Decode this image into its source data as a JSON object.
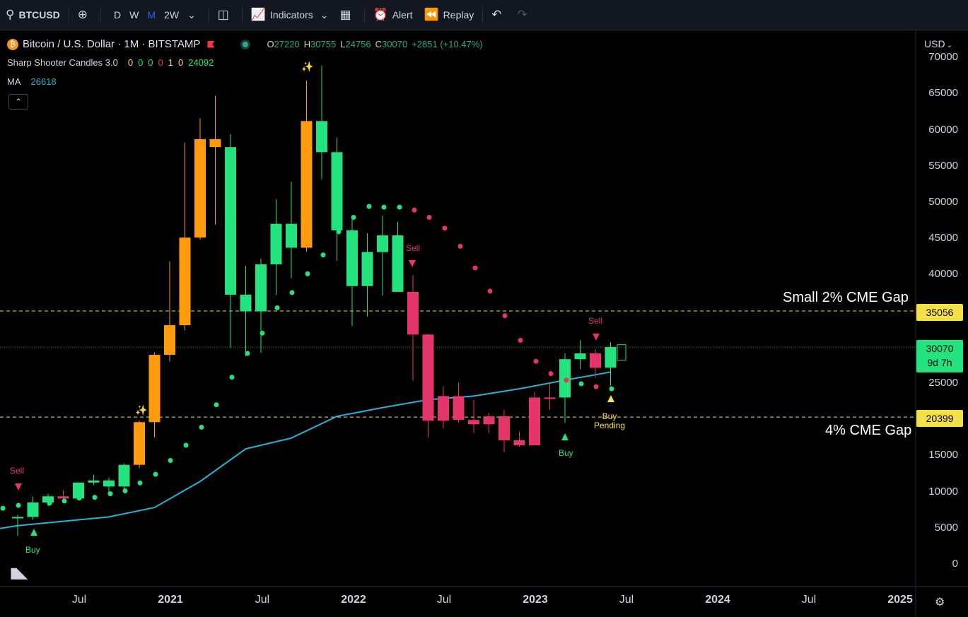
{
  "toolbar": {
    "symbol": "BTCUSD",
    "intervals": [
      "D",
      "W",
      "M",
      "2W"
    ],
    "active_interval": "M",
    "indicators_label": "Indicators",
    "alert_label": "Alert",
    "replay_label": "Replay"
  },
  "legend": {
    "title": "Bitcoin / U.S. Dollar · 1M · BITSTAMP",
    "o_label": "O",
    "o_value": "27220",
    "h_label": "H",
    "h_value": "30755",
    "l_label": "L",
    "l_value": "24756",
    "c_label": "C",
    "c_value": "30070",
    "change": "+2851 (+10.47%)",
    "indicator1_name": "Sharp Shooter Candles 3.0",
    "indicator1_values": [
      "0",
      "0",
      "0",
      "0",
      "1",
      "0",
      "24092"
    ],
    "indicator2_name": "MA",
    "indicator2_value": "26618"
  },
  "price_axis": {
    "currency": "USD",
    "ticks": [
      "70000",
      "65000",
      "60000",
      "55000",
      "50000",
      "45000",
      "40000",
      "35000",
      "30000",
      "25000",
      "20000",
      "15000",
      "10000",
      "5000",
      "0"
    ]
  },
  "time_axis": {
    "ticks": [
      "Jul",
      "2021",
      "Jul",
      "2022",
      "Jul",
      "2023",
      "Jul",
      "2024",
      "Jul",
      "2025"
    ]
  },
  "price_tags": {
    "gap_small": "35056",
    "current": "30070",
    "countdown": "9d 7h",
    "gap_large": "20399"
  },
  "annotations": {
    "small_gap": "Small 2% CME Gap",
    "large_gap": "4% CME Gap"
  },
  "signals": {
    "sell": "Sell",
    "buy": "Buy",
    "buy_pending": "Buy Pending"
  },
  "colors": {
    "bull": "#22e37d",
    "bear": "#e6356a",
    "orange": "#ff9b0f",
    "ma": "#1fb4d8",
    "gap_line": "#f5e04a",
    "price_tag": "#f5e04a",
    "current_tag": "#22e37d"
  },
  "chart_data": {
    "type": "candlestick",
    "ylim": [
      0,
      72000
    ],
    "candles": [
      {
        "date": "2020-03",
        "o": 6400,
        "h": 6900,
        "l": 4000,
        "c": 6600,
        "color": "green"
      },
      {
        "date": "2020-04",
        "o": 6600,
        "h": 9400,
        "l": 6200,
        "c": 8600,
        "color": "green"
      },
      {
        "date": "2020-05",
        "o": 8600,
        "h": 9800,
        "l": 8100,
        "c": 9450,
        "color": "green"
      },
      {
        "date": "2020-06",
        "o": 9450,
        "h": 10300,
        "l": 8900,
        "c": 9150,
        "color": "red"
      },
      {
        "date": "2020-07",
        "o": 9150,
        "h": 11400,
        "l": 8950,
        "c": 11350,
        "color": "green"
      },
      {
        "date": "2020-08",
        "o": 11350,
        "h": 12450,
        "l": 11000,
        "c": 11650,
        "color": "green"
      },
      {
        "date": "2020-09",
        "o": 11650,
        "h": 12050,
        "l": 9900,
        "c": 10800,
        "color": "green"
      },
      {
        "date": "2020-10",
        "o": 10800,
        "h": 14000,
        "l": 10400,
        "c": 13800,
        "color": "green"
      },
      {
        "date": "2020-11",
        "o": 13800,
        "h": 19900,
        "l": 13300,
        "c": 19700,
        "color": "orange"
      },
      {
        "date": "2020-12",
        "o": 19700,
        "h": 29300,
        "l": 17600,
        "c": 29000,
        "color": "orange"
      },
      {
        "date": "2021-01",
        "o": 29000,
        "h": 41900,
        "l": 28100,
        "c": 33100,
        "color": "orange"
      },
      {
        "date": "2021-02",
        "o": 33100,
        "h": 58300,
        "l": 32400,
        "c": 45200,
        "color": "orange"
      },
      {
        "date": "2021-03",
        "o": 45200,
        "h": 61700,
        "l": 44900,
        "c": 58800,
        "color": "orange"
      },
      {
        "date": "2021-04",
        "o": 58800,
        "h": 64800,
        "l": 47000,
        "c": 57700,
        "color": "orange"
      },
      {
        "date": "2021-05",
        "o": 57700,
        "h": 59500,
        "l": 30000,
        "c": 37300,
        "color": "green"
      },
      {
        "date": "2021-06",
        "o": 37300,
        "h": 41300,
        "l": 28800,
        "c": 35000,
        "color": "green"
      },
      {
        "date": "2021-07",
        "o": 35000,
        "h": 42300,
        "l": 29300,
        "c": 41500,
        "color": "green"
      },
      {
        "date": "2021-08",
        "o": 41500,
        "h": 50500,
        "l": 37300,
        "c": 47100,
        "color": "green"
      },
      {
        "date": "2021-09",
        "o": 47100,
        "h": 52900,
        "l": 39600,
        "c": 43800,
        "color": "green"
      },
      {
        "date": "2021-10",
        "o": 43800,
        "h": 66900,
        "l": 43300,
        "c": 61300,
        "color": "orange"
      },
      {
        "date": "2021-11",
        "o": 61300,
        "h": 69000,
        "l": 53300,
        "c": 57000,
        "color": "green"
      },
      {
        "date": "2021-12",
        "o": 57000,
        "h": 59000,
        "l": 42000,
        "c": 46200,
        "color": "green"
      },
      {
        "date": "2022-01",
        "o": 46200,
        "h": 47900,
        "l": 33000,
        "c": 38500,
        "color": "green"
      },
      {
        "date": "2022-02",
        "o": 38500,
        "h": 45800,
        "l": 34300,
        "c": 43200,
        "color": "green"
      },
      {
        "date": "2022-03",
        "o": 43200,
        "h": 48200,
        "l": 37200,
        "c": 45500,
        "color": "green"
      },
      {
        "date": "2022-04",
        "o": 45500,
        "h": 47400,
        "l": 37700,
        "c": 37700,
        "color": "green"
      },
      {
        "date": "2022-05",
        "o": 37700,
        "h": 40000,
        "l": 25400,
        "c": 31800,
        "color": "red"
      },
      {
        "date": "2022-06",
        "o": 31800,
        "h": 31900,
        "l": 17600,
        "c": 19900,
        "color": "red"
      },
      {
        "date": "2022-07",
        "o": 19900,
        "h": 24600,
        "l": 18800,
        "c": 23300,
        "color": "red"
      },
      {
        "date": "2022-08",
        "o": 23300,
        "h": 25200,
        "l": 19600,
        "c": 20000,
        "color": "red"
      },
      {
        "date": "2022-09",
        "o": 20000,
        "h": 22800,
        "l": 18200,
        "c": 19400,
        "color": "red"
      },
      {
        "date": "2022-10",
        "o": 19400,
        "h": 21000,
        "l": 18200,
        "c": 20500,
        "color": "red"
      },
      {
        "date": "2022-11",
        "o": 20500,
        "h": 21400,
        "l": 15500,
        "c": 17200,
        "color": "red"
      },
      {
        "date": "2022-12",
        "o": 17200,
        "h": 18400,
        "l": 16300,
        "c": 16500,
        "color": "red"
      },
      {
        "date": "2023-01",
        "o": 16500,
        "h": 23900,
        "l": 16500,
        "c": 23100,
        "color": "red"
      },
      {
        "date": "2023-02",
        "o": 23100,
        "h": 25200,
        "l": 21400,
        "c": 23100,
        "color": "red"
      },
      {
        "date": "2023-03",
        "o": 23100,
        "h": 29200,
        "l": 19600,
        "c": 28400,
        "color": "green"
      },
      {
        "date": "2023-04",
        "o": 28400,
        "h": 31000,
        "l": 27000,
        "c": 29200,
        "color": "green"
      },
      {
        "date": "2023-05",
        "o": 29200,
        "h": 29800,
        "l": 25800,
        "c": 27200,
        "color": "red"
      },
      {
        "date": "2023-06",
        "o": 27220,
        "h": 30755,
        "l": 24756,
        "c": 30070,
        "color": "green"
      }
    ],
    "ma_series": [
      {
        "date": "2020-03",
        "v": 5400
      },
      {
        "date": "2020-09",
        "v": 6600
      },
      {
        "date": "2020-12",
        "v": 7900
      },
      {
        "date": "2021-03",
        "v": 11500
      },
      {
        "date": "2021-06",
        "v": 16000
      },
      {
        "date": "2021-09",
        "v": 17500
      },
      {
        "date": "2021-12",
        "v": 20500
      },
      {
        "date": "2022-03",
        "v": 21700
      },
      {
        "date": "2022-06",
        "v": 22800
      },
      {
        "date": "2022-09",
        "v": 23300
      },
      {
        "date": "2022-12",
        "v": 24300
      },
      {
        "date": "2023-03",
        "v": 25500
      },
      {
        "date": "2023-06",
        "v": 26618
      }
    ],
    "lines": [
      {
        "name": "Small 2% CME Gap",
        "value": 35056
      },
      {
        "name": "4% CME Gap",
        "value": 20399
      }
    ],
    "current_price": 30070
  }
}
